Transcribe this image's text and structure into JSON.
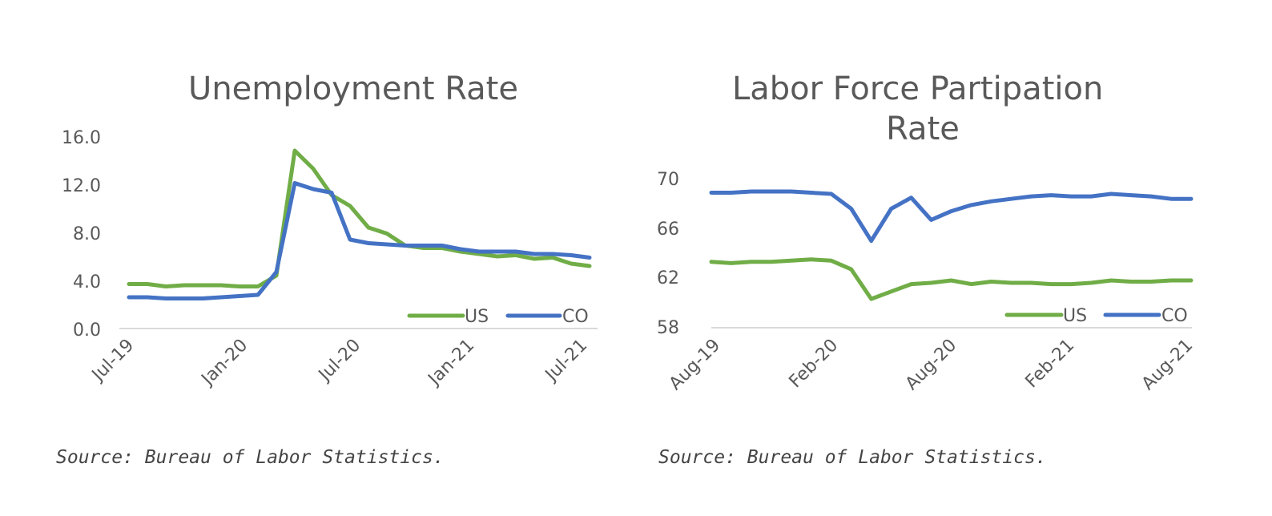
{
  "chart_data": [
    {
      "type": "line",
      "title": "Unemployment Rate",
      "x": [
        "Jul-19",
        "Aug-19",
        "Sep-19",
        "Oct-19",
        "Nov-19",
        "Dec-19",
        "Jan-20",
        "Feb-20",
        "Mar-20",
        "Apr-20",
        "May-20",
        "Jun-20",
        "Jul-20",
        "Aug-20",
        "Sep-20",
        "Oct-20",
        "Nov-20",
        "Dec-20",
        "Jan-21",
        "Feb-21",
        "Mar-21",
        "Apr-21",
        "May-21",
        "Jun-21",
        "Jul-21",
        "Aug-21"
      ],
      "x_tick_labels": [
        "Jul-19",
        "Jan-20",
        "Jul-20",
        "Jan-21",
        "Jul-21"
      ],
      "y_tick_labels": [
        "16.0",
        "12.0",
        "8.0",
        "4.0",
        "0.0"
      ],
      "ylim": [
        0,
        16
      ],
      "series": [
        {
          "name": "US",
          "color": "#70ad47",
          "values": [
            3.7,
            3.7,
            3.5,
            3.6,
            3.6,
            3.6,
            3.5,
            3.5,
            4.4,
            14.8,
            13.3,
            11.1,
            10.2,
            8.4,
            7.9,
            6.9,
            6.7,
            6.7,
            6.4,
            6.2,
            6.0,
            6.1,
            5.8,
            5.9,
            5.4,
            5.2
          ]
        },
        {
          "name": "CO",
          "color": "#4472c4",
          "values": [
            2.6,
            2.6,
            2.5,
            2.5,
            2.5,
            2.6,
            2.7,
            2.8,
            4.7,
            12.1,
            11.6,
            11.3,
            7.4,
            7.1,
            7.0,
            6.9,
            6.9,
            6.9,
            6.6,
            6.4,
            6.4,
            6.4,
            6.2,
            6.2,
            6.1,
            5.9
          ]
        }
      ],
      "legend": "bottom-right",
      "grid": false
    },
    {
      "type": "line",
      "title": "Labor Force Partipation Rate",
      "x": [
        "Aug-19",
        "Sep-19",
        "Oct-19",
        "Nov-19",
        "Dec-19",
        "Jan-20",
        "Feb-20",
        "Mar-20",
        "Apr-20",
        "May-20",
        "Jun-20",
        "Jul-20",
        "Aug-20",
        "Sep-20",
        "Oct-20",
        "Nov-20",
        "Dec-20",
        "Jan-21",
        "Feb-21",
        "Mar-21",
        "Apr-21",
        "May-21",
        "Jun-21",
        "Jul-21",
        "Aug-21"
      ],
      "x_tick_labels": [
        "Aug-19",
        "Feb-20",
        "Aug-20",
        "Feb-21",
        "Aug-21"
      ],
      "y_tick_labels": [
        "70",
        "66",
        "62",
        "58"
      ],
      "ylim": [
        58,
        70
      ],
      "series": [
        {
          "name": "US",
          "color": "#70ad47",
          "values": [
            63.2,
            63.1,
            63.2,
            63.2,
            63.3,
            63.4,
            63.3,
            62.6,
            60.2,
            60.8,
            61.4,
            61.5,
            61.7,
            61.4,
            61.6,
            61.5,
            61.5,
            61.4,
            61.4,
            61.5,
            61.7,
            61.6,
            61.6,
            61.7,
            61.7
          ]
        },
        {
          "name": "CO",
          "color": "#4472c4",
          "values": [
            68.8,
            68.8,
            68.9,
            68.9,
            68.9,
            68.8,
            68.7,
            67.5,
            64.9,
            67.5,
            68.4,
            66.6,
            67.3,
            67.8,
            68.1,
            68.3,
            68.5,
            68.6,
            68.5,
            68.5,
            68.7,
            68.6,
            68.5,
            68.3,
            68.3
          ]
        }
      ],
      "legend": "bottom-right",
      "grid": false
    }
  ],
  "sources": {
    "left": "Source: Bureau of Labor Statistics.",
    "right": "Source: Bureau of Labor Statistics."
  }
}
